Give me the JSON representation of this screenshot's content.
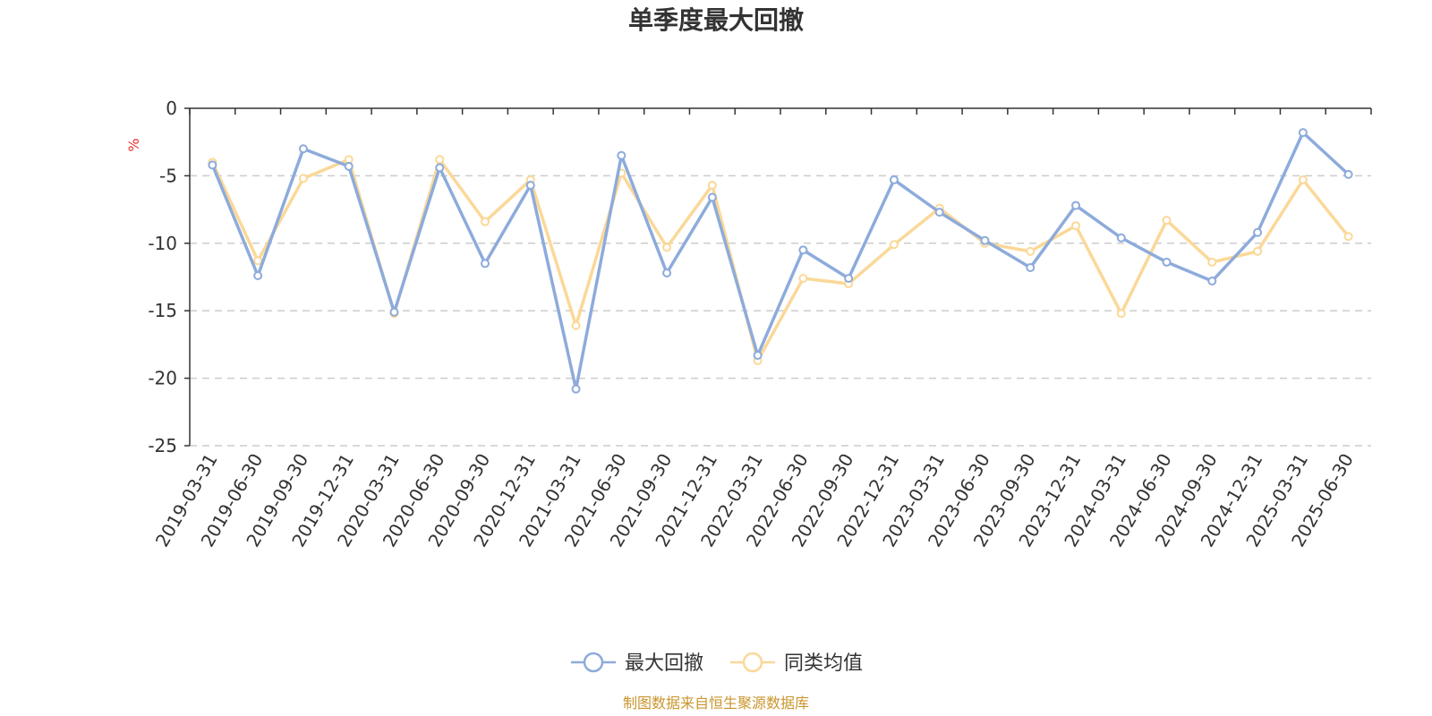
{
  "chart_data": {
    "type": "line",
    "title": "单季度最大回撤",
    "ylabel": "%",
    "ylim": [
      -25,
      0
    ],
    "yticks": [
      0,
      -5,
      -10,
      -15,
      -20,
      -25
    ],
    "grid": true,
    "legend_position": "bottom",
    "categories": [
      "2019-03-31",
      "2019-06-30",
      "2019-09-30",
      "2019-12-31",
      "2020-03-31",
      "2020-06-30",
      "2020-09-30",
      "2020-12-31",
      "2021-03-31",
      "2021-06-30",
      "2021-09-30",
      "2021-12-31",
      "2022-03-31",
      "2022-06-30",
      "2022-09-30",
      "2022-12-31",
      "2023-03-31",
      "2023-06-30",
      "2023-09-30",
      "2023-12-31",
      "2024-03-31",
      "2024-06-30",
      "2024-09-30",
      "2024-12-31",
      "2025-03-31",
      "2025-06-30"
    ],
    "series": [
      {
        "name": "最大回撤",
        "color": "#8dabdb",
        "values": [
          -4.2,
          -12.4,
          -3.0,
          -4.3,
          -15.1,
          -4.4,
          -11.5,
          -5.7,
          -20.8,
          -3.5,
          -12.2,
          -6.6,
          -18.3,
          -10.5,
          -12.6,
          -5.3,
          -7.7,
          -9.8,
          -11.8,
          -7.2,
          -9.6,
          -11.4,
          -12.8,
          -9.2,
          -1.8,
          -4.9
        ]
      },
      {
        "name": "同类均值",
        "color": "#fbd898",
        "values": [
          -4.0,
          -11.3,
          -5.2,
          -3.8,
          -15.2,
          -3.8,
          -8.4,
          -5.3,
          -16.1,
          -4.8,
          -10.3,
          -5.7,
          -18.7,
          -12.6,
          -13.0,
          -10.1,
          -7.4,
          -10.0,
          -10.6,
          -8.7,
          -15.2,
          -8.3,
          -11.4,
          -10.6,
          -5.3,
          -9.5
        ]
      }
    ]
  },
  "source_note": "制图数据来自恒生聚源数据库",
  "colors": {
    "unit_color": "#e8302e",
    "source_color": "#c9962e",
    "axis_color": "#333333",
    "grid_color": "#cccccc"
  }
}
